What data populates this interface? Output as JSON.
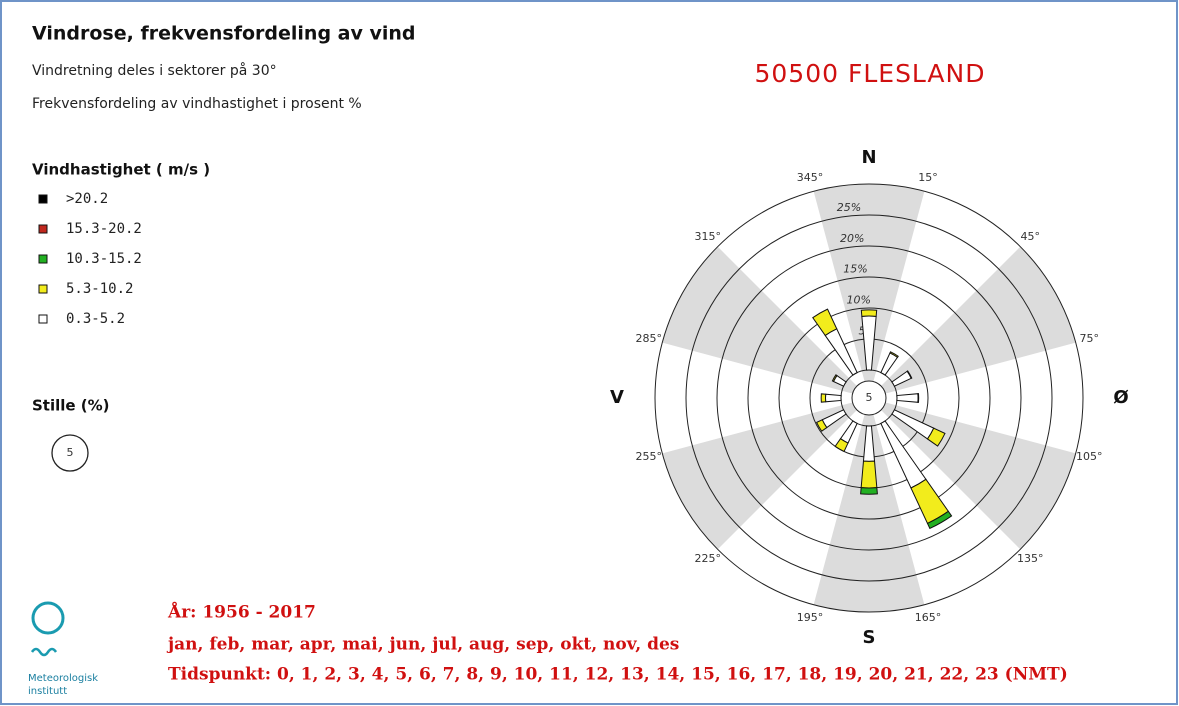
{
  "chart_data": {
    "type": "windrose",
    "title": "Vindrose, frekvensfordeling av vind",
    "subtitle": "Vindretning deles i sektorer på 30°",
    "subtitle2": "Frekvensfordeling av vindhastighet i prosent %",
    "station": "50500 FLESLAND",
    "legend_title": "Vindhastighet ( m/s )",
    "calm_title": "Stille (%)",
    "calm": 5,
    "categories": [
      null,
      null,
      null,
      null,
      null,
      null,
      null,
      null,
      null,
      null,
      null,
      null
    ],
    "series": [
      {
        "name": ">20.2",
        "color": "#000000",
        "values": [
          0,
          0,
          0,
          0,
          0,
          0,
          0,
          0,
          0,
          0,
          0,
          0
        ]
      },
      {
        "name": "15.3-20.2",
        "color": "#c0281e",
        "values": [
          0,
          0,
          0,
          0,
          0,
          0,
          0,
          0,
          0,
          0,
          0,
          0
        ]
      },
      {
        "name": "10.3-15.2",
        "color": "#22b022",
        "values": [
          0,
          0,
          0,
          0,
          0,
          0.9,
          1.0,
          0,
          0,
          0,
          0,
          0
        ]
      },
      {
        "name": "5.3-10.2",
        "color": "#f2ec1c",
        "values": [
          1.0,
          0.2,
          0.1,
          0.1,
          2.0,
          6.3,
          4.3,
          1.5,
          1.0,
          0.7,
          0.2,
          3.5
        ]
      },
      {
        "name": "0.3-5.2",
        "color": "#ffffff",
        "values": [
          8.7,
          3.5,
          3.0,
          3.4,
          7.0,
          11.5,
          5.7,
          3.5,
          3.8,
          2.5,
          1.8,
          7.8
        ]
      }
    ],
    "rlim": [
      0,
      30
    ],
    "rticks": [
      5,
      {
        "value": 10,
        "label": "10%"
      },
      {
        "value": 15,
        "label": "15%"
      },
      {
        "value": 20,
        "label": "20%"
      },
      {
        "value": 25,
        "label": "25%"
      }
    ],
    "sector_labels": [
      "15°",
      "45°",
      "75°",
      "105°",
      "135°",
      "165°",
      "195°",
      "225°",
      "255°",
      "285°",
      "315°",
      "345°"
    ],
    "compass": [
      "N",
      "Ø",
      "S",
      "V"
    ],
    "period": "År: 1956 - 2017",
    "months": "jan, feb, mar, apr, mai, jun, jul, aug, sep, okt, nov, des",
    "hours": "Tidspunkt: 0, 1, 2, 3, 4, 5, 6, 7, 8, 9, 10, 11, 12, 13, 14, 15, 16, 17, 18, 19, 20, 21, 22, 23 (NMT)",
    "logo": [
      "Meteorologisk",
      "institutt"
    ]
  }
}
